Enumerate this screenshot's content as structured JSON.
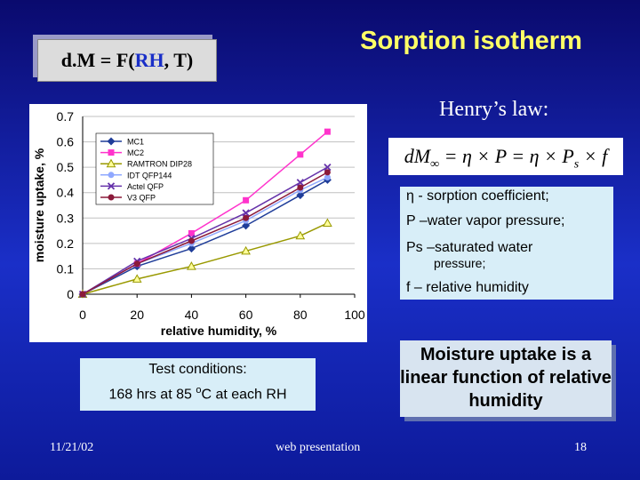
{
  "slide": {
    "title": "Sorption isotherm",
    "formula_box": {
      "prefix": "d.M = F(",
      "highlight": "RH",
      "suffix": ", T)"
    },
    "henry_label": "Henry’s law:",
    "equation": {
      "lhs": "dM",
      "lhs_sub": "∞",
      "rhs": " = η × P = η × P",
      "rhs_sub": "s",
      "tail": " × f"
    },
    "definitions": [
      "η - sorption coefficient;",
      "P –water vapor pressure;",
      "Ps –saturated water",
      "pressure;",
      "f – relative humidity"
    ],
    "conclusion": "Moisture uptake is a linear function of relative humidity",
    "test": {
      "heading": "Test conditions:",
      "before": "168 hrs at 85 ",
      "sup": "o",
      "after": "C at each RH"
    },
    "footer": {
      "date": "11/21/02",
      "center": "web presentation",
      "page": "18"
    }
  },
  "chart_data": {
    "type": "line",
    "x_label": "relative humidity, %",
    "y_label": "moisture uptake, %",
    "x": [
      0,
      20,
      40,
      60,
      80,
      90
    ],
    "series": [
      {
        "name": "MC1",
        "color": "#1f3d99",
        "marker": "diamond",
        "values": [
          0,
          0.11,
          0.18,
          0.27,
          0.39,
          0.45
        ]
      },
      {
        "name": "MC2",
        "color": "#ff33cc",
        "marker": "square",
        "values": [
          0,
          0.12,
          0.24,
          0.37,
          0.55,
          0.64
        ]
      },
      {
        "name": "RAMTRON DIP28",
        "color": "#999900",
        "marker": "triangle",
        "values": [
          0,
          0.06,
          0.11,
          0.17,
          0.23,
          0.28
        ]
      },
      {
        "name": "IDT QFP144",
        "color": "#8fa8ff",
        "marker": "circle",
        "values": [
          0,
          0.12,
          0.2,
          0.29,
          0.41,
          0.46
        ]
      },
      {
        "name": "Actel QFP",
        "color": "#6633aa",
        "marker": "cross",
        "values": [
          0,
          0.13,
          0.22,
          0.32,
          0.44,
          0.5
        ]
      },
      {
        "name": "V3 QFP",
        "color": "#8b1a3a",
        "marker": "circle",
        "values": [
          0,
          0.12,
          0.21,
          0.3,
          0.42,
          0.48
        ]
      }
    ],
    "xlim": [
      0,
      100
    ],
    "xticks": [
      0,
      20,
      40,
      60,
      80,
      100
    ],
    "ylim": [
      0,
      0.7
    ],
    "yticks": [
      0,
      0.1,
      0.2,
      0.3,
      0.4,
      0.5,
      0.6,
      0.7
    ],
    "grid": true
  }
}
